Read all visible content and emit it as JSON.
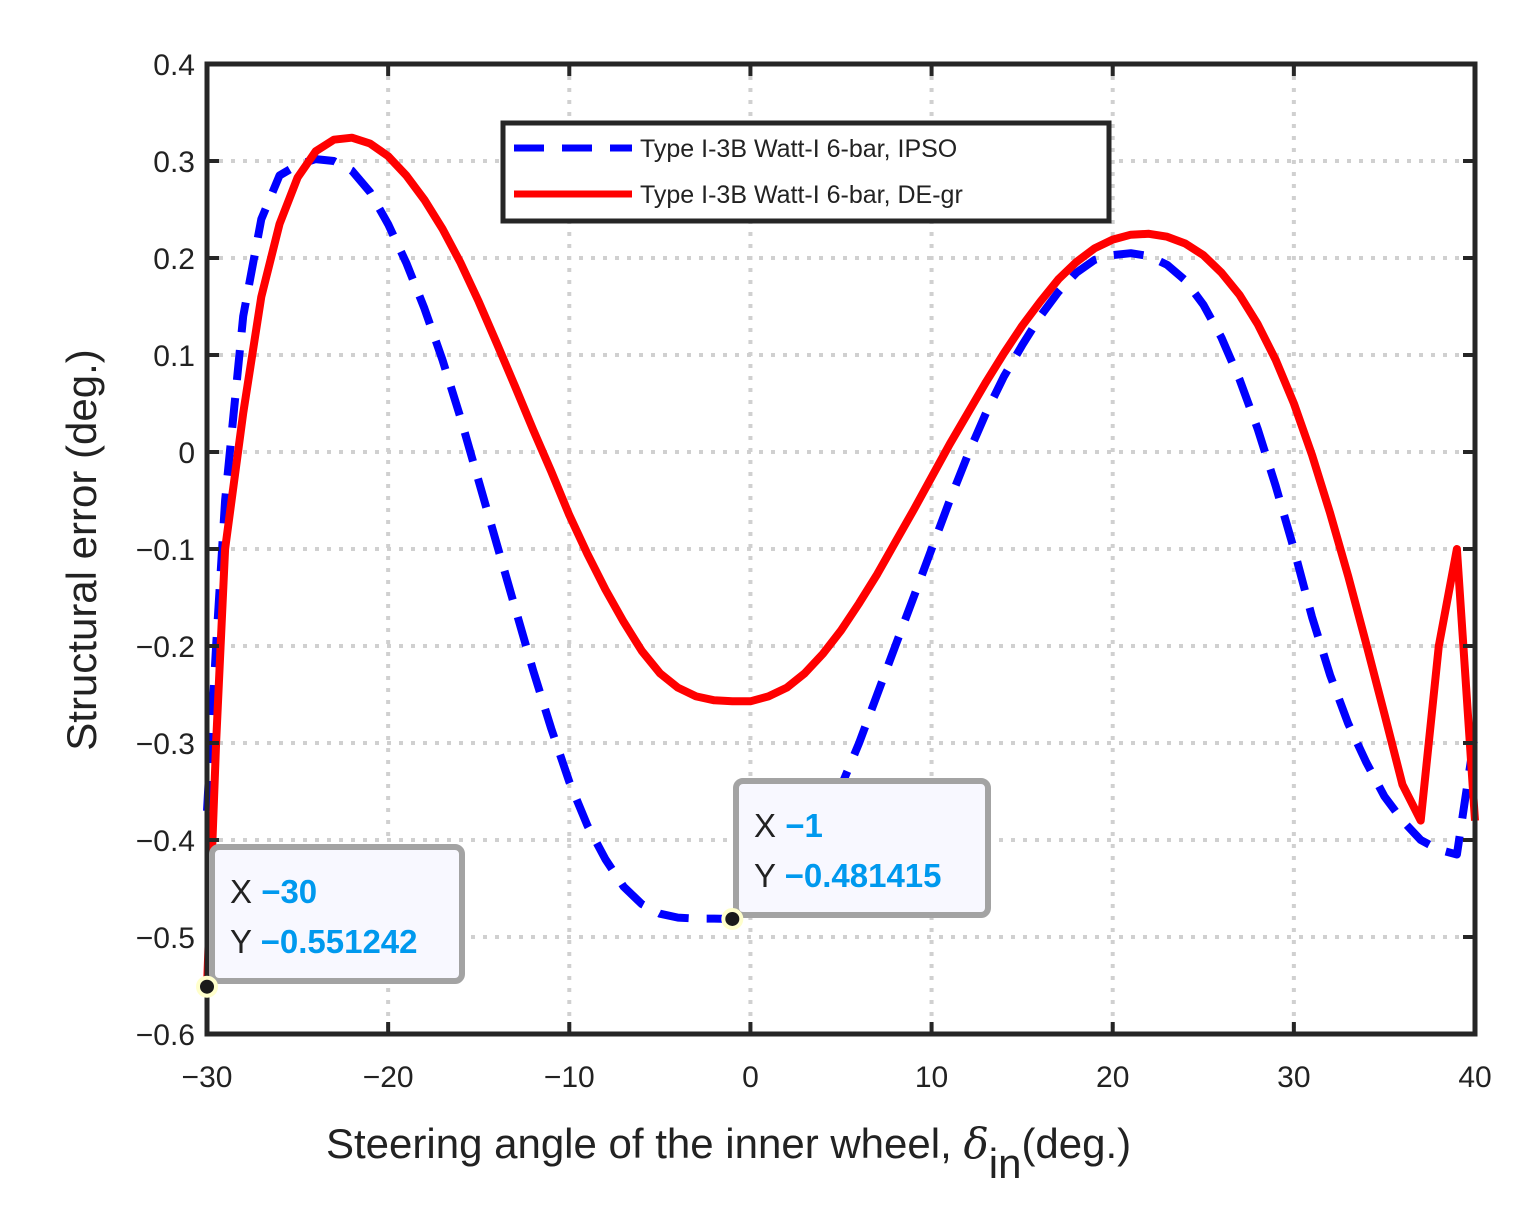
{
  "chart_data": {
    "type": "line",
    "xlabel_main": "Steering angle of the inner wheel, ",
    "xlabel_symbol": "δ",
    "xlabel_sub": "in",
    "xlabel_tail": "(deg.)",
    "ylabel": "Structural error (deg.)",
    "xlim": [
      -30,
      40
    ],
    "ylim": [
      -0.6,
      0.4
    ],
    "grid": true,
    "legend_position": "top-center",
    "x_ticks": [
      -30,
      -20,
      -10,
      0,
      10,
      20,
      30,
      40
    ],
    "x_tick_labels": [
      "−30",
      "−20",
      "−10",
      "0",
      "10",
      "20",
      "30",
      "40"
    ],
    "y_ticks": [
      0.4,
      0.3,
      0.2,
      0.1,
      0,
      -0.1,
      -0.2,
      -0.3,
      -0.4,
      -0.5,
      -0.6
    ],
    "y_tick_labels": [
      "0.4",
      "0.3",
      "0.2",
      "0.1",
      "0",
      "−0.1",
      "−0.2",
      "−0.3",
      "−0.4",
      "−0.5",
      "−0.6"
    ],
    "series": [
      {
        "name": "Type I-3B Watt-I 6-bar, IPSO",
        "color": "#0000ff",
        "dash": "dashed",
        "x": [
          -30,
          -29.5,
          -29,
          -28,
          -27,
          -26,
          -25,
          -24,
          -23,
          -22,
          -21,
          -20,
          -19,
          -18,
          -17,
          -16,
          -15,
          -14,
          -13,
          -12,
          -11,
          -10,
          -9,
          -8,
          -7,
          -6,
          -5,
          -4,
          -3,
          -2,
          -1,
          0,
          1,
          2,
          3,
          4,
          5,
          6,
          7,
          8,
          9,
          10,
          11,
          12,
          13,
          14,
          15,
          16,
          17,
          18,
          19,
          20,
          21,
          22,
          23,
          24,
          25,
          26,
          27,
          28,
          29,
          30,
          31,
          32,
          33,
          34,
          35,
          36,
          37,
          38,
          39,
          40
        ],
        "y": [
          -0.37,
          -0.2,
          -0.05,
          0.14,
          0.24,
          0.285,
          0.296,
          0.302,
          0.3,
          0.29,
          0.268,
          0.235,
          0.195,
          0.148,
          0.095,
          0.035,
          -0.03,
          -0.095,
          -0.16,
          -0.225,
          -0.285,
          -0.34,
          -0.385,
          -0.42,
          -0.448,
          -0.466,
          -0.476,
          -0.48,
          -0.481,
          -0.481,
          -0.481415,
          -0.478,
          -0.468,
          -0.45,
          -0.42,
          -0.385,
          -0.345,
          -0.3,
          -0.25,
          -0.2,
          -0.15,
          -0.1,
          -0.05,
          -0.003,
          0.04,
          0.078,
          0.11,
          0.14,
          0.165,
          0.185,
          0.198,
          0.203,
          0.205,
          0.202,
          0.193,
          0.177,
          0.152,
          0.118,
          0.075,
          0.024,
          -0.035,
          -0.1,
          -0.17,
          -0.23,
          -0.28,
          -0.32,
          -0.355,
          -0.38,
          -0.4,
          -0.41,
          -0.415,
          -0.29
        ]
      },
      {
        "name": "Type I-3B Watt-I 6-bar, DE-gr",
        "color": "#ff0000",
        "dash": "solid",
        "x": [
          -30,
          -29.5,
          -29,
          -28,
          -27,
          -26,
          -25,
          -24,
          -23,
          -22,
          -21,
          -20,
          -19,
          -18,
          -17,
          -16,
          -15,
          -14,
          -13,
          -12,
          -11,
          -10,
          -9,
          -8,
          -7,
          -6,
          -5,
          -4,
          -3,
          -2,
          -1,
          0,
          1,
          2,
          3,
          4,
          5,
          6,
          7,
          8,
          9,
          10,
          11,
          12,
          13,
          14,
          15,
          16,
          17,
          18,
          19,
          20,
          21,
          22,
          23,
          24,
          25,
          26,
          27,
          28,
          29,
          30,
          31,
          32,
          33,
          34,
          35,
          36,
          37,
          38,
          39,
          40
        ],
        "y": [
          -0.551242,
          -0.3,
          -0.1,
          0.04,
          0.16,
          0.235,
          0.283,
          0.31,
          0.322,
          0.324,
          0.318,
          0.305,
          0.285,
          0.26,
          0.23,
          0.195,
          0.155,
          0.112,
          0.068,
          0.023,
          -0.02,
          -0.065,
          -0.105,
          -0.142,
          -0.175,
          -0.205,
          -0.228,
          -0.243,
          -0.252,
          -0.256,
          -0.257,
          -0.257,
          -0.252,
          -0.243,
          -0.228,
          -0.208,
          -0.184,
          -0.156,
          -0.126,
          -0.093,
          -0.06,
          -0.026,
          0.008,
          0.04,
          0.072,
          0.102,
          0.13,
          0.155,
          0.178,
          0.196,
          0.21,
          0.219,
          0.224,
          0.225,
          0.222,
          0.215,
          0.203,
          0.185,
          0.162,
          0.132,
          0.095,
          0.05,
          -0.003,
          -0.063,
          -0.128,
          -0.198,
          -0.27,
          -0.343,
          -0.38,
          -0.2,
          -0.1,
          -0.38
        ]
      }
    ],
    "datatips": [
      {
        "x": -30,
        "y": -0.551242,
        "x_label": "X",
        "y_label": "Y",
        "x_text": "−30",
        "y_text": "−0.551242"
      },
      {
        "x": -1,
        "y": -0.481415,
        "x_label": "X",
        "y_label": "Y",
        "x_text": "−1",
        "y_text": "−0.481415"
      }
    ]
  }
}
